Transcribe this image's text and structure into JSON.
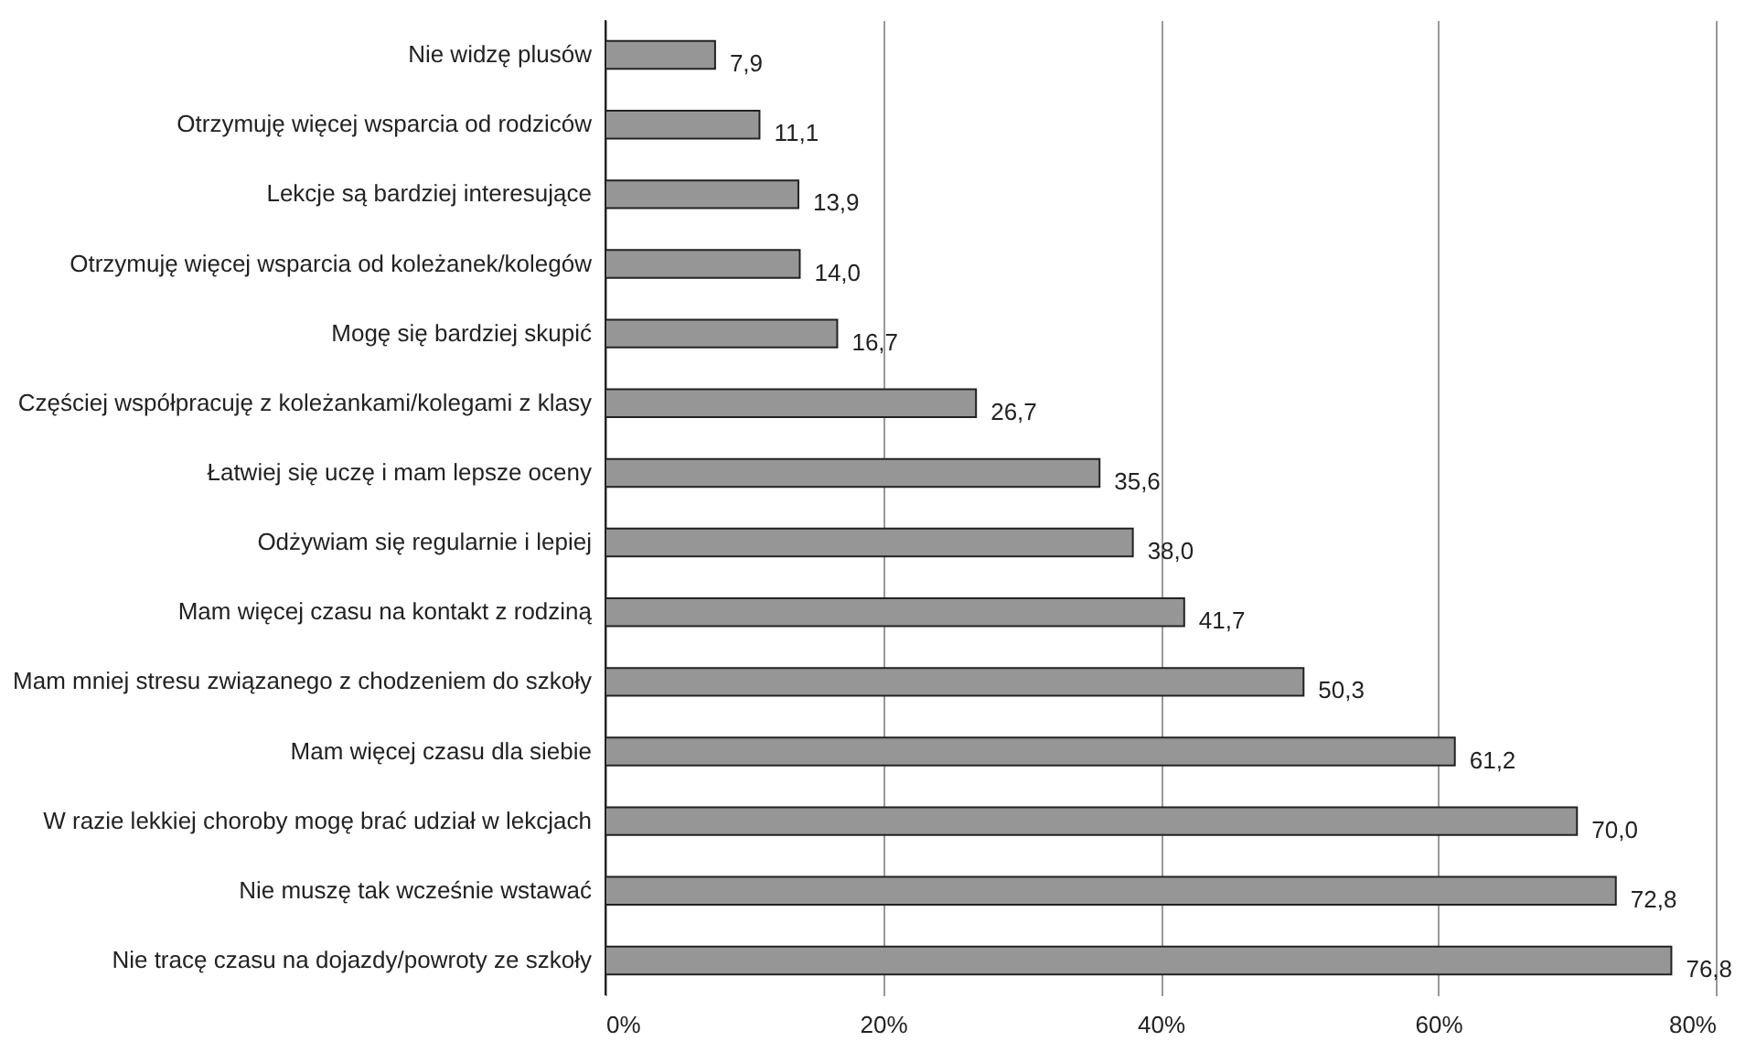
{
  "chart_data": {
    "type": "bar",
    "orientation": "horizontal",
    "categories": [
      "Nie widzę plusów",
      "Otrzymuję więcej wsparcia od rodziców",
      "Lekcje są bardziej interesujące",
      "Otrzymuję więcej wsparcia od koleżanek/kolegów",
      "Mogę się bardziej skupić",
      "Częściej współpracuję z koleżankami/kolegami z klasy",
      "Łatwiej się uczę i mam lepsze oceny",
      "Odżywiam się regularnie i lepiej",
      "Mam więcej czasu na kontakt z rodziną",
      "Mam mniej stresu związanego z chodzeniem do szkoły",
      "Mam więcej czasu dla siebie",
      "W razie lekkiej choroby mogę brać udział w lekcjach",
      "Nie muszę tak wcześnie wstawać",
      "Nie tracę czasu na dojazdy/powroty ze szkoły"
    ],
    "values": [
      7.9,
      11.1,
      13.9,
      14.0,
      16.7,
      26.7,
      35.6,
      38.0,
      41.7,
      50.3,
      61.2,
      70.0,
      72.8,
      76.8
    ],
    "value_labels": [
      "7,9",
      "11,1",
      "13,9",
      "14,0",
      "16,7",
      "26,7",
      "35,6",
      "38,0",
      "41,7",
      "50,3",
      "61,2",
      "70,0",
      "72,8",
      "76,8"
    ],
    "color": "#969696",
    "xlim": [
      0,
      80
    ],
    "xticks": [
      {
        "value": 0,
        "label": "0%"
      },
      {
        "value": 20,
        "label": "20%"
      },
      {
        "value": 40,
        "label": "40%"
      },
      {
        "value": 60,
        "label": "60%"
      },
      {
        "value": 80,
        "label": "80%"
      }
    ],
    "grid": "x"
  }
}
